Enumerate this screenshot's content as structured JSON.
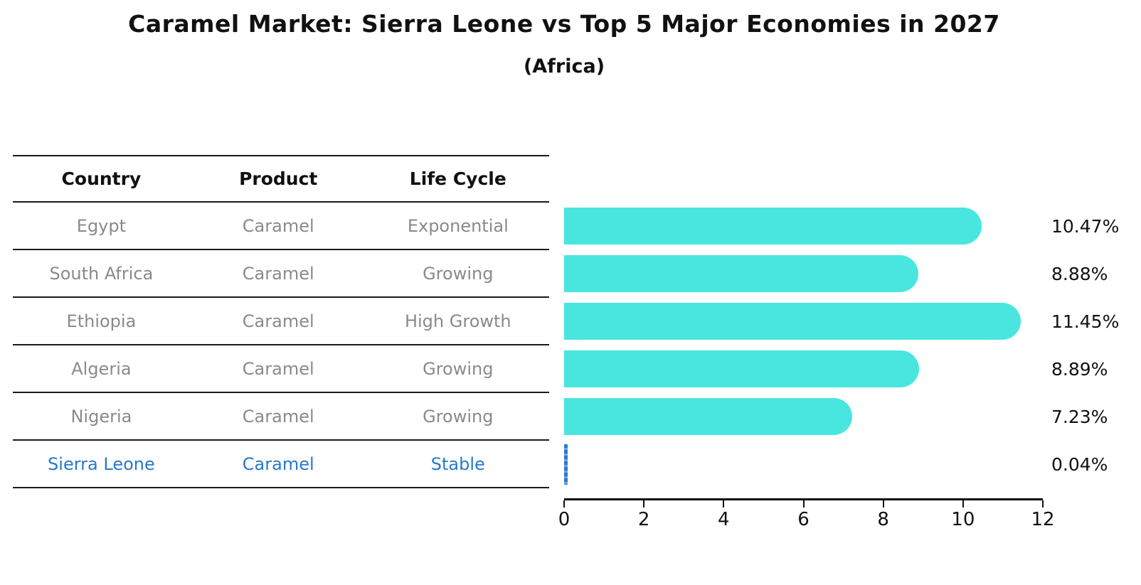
{
  "title": "Caramel Market: Sierra Leone vs Top 5 Major Economies in 2027",
  "subtitle": "(Africa)",
  "table": {
    "headers": [
      "Country",
      "Product",
      "Life Cycle"
    ],
    "rows": [
      {
        "country": "Egypt",
        "product": "Caramel",
        "life_cycle": "Exponential"
      },
      {
        "country": "South Africa",
        "product": "Caramel",
        "life_cycle": "Growing"
      },
      {
        "country": "Ethiopia",
        "product": "Caramel",
        "life_cycle": "High Growth"
      },
      {
        "country": "Algeria",
        "product": "Caramel",
        "life_cycle": "Growing"
      },
      {
        "country": "Nigeria",
        "product": "Caramel",
        "life_cycle": "Growing"
      },
      {
        "country": "Sierra Leone",
        "product": "Caramel",
        "life_cycle": "Stable"
      }
    ]
  },
  "chart_data": {
    "type": "bar",
    "orientation": "horizontal",
    "categories": [
      "Egypt",
      "South Africa",
      "Ethiopia",
      "Algeria",
      "Nigeria",
      "Sierra Leone"
    ],
    "values": [
      10.47,
      8.88,
      11.45,
      8.89,
      7.23,
      0.04
    ],
    "labels": [
      "10.47%",
      "8.88%",
      "11.45%",
      "8.89%",
      "7.23%",
      "0.04%"
    ],
    "xlim": [
      0,
      12
    ],
    "xticks": [
      0,
      2,
      4,
      6,
      8,
      10,
      12
    ],
    "xtick_labels": [
      "0",
      "2",
      "4",
      "6",
      "8",
      "10",
      "12"
    ],
    "grid": false,
    "legend": "none",
    "bar_color": "#49E6E0",
    "highlight_color": "#2878C8",
    "highlight_index": 5
  },
  "colors": {
    "muted_text": "#8A8A8A",
    "header_text": "#111111",
    "highlight_text": "#2878C8",
    "bar_fill": "#49E6E0"
  }
}
